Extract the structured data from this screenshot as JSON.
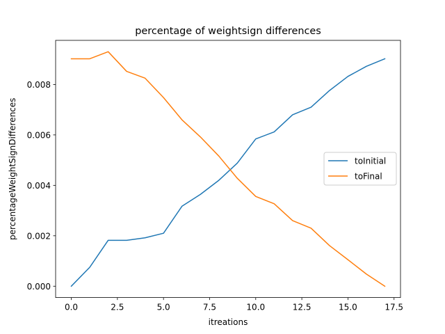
{
  "chart_data": {
    "type": "line",
    "title": "percentage of weightsign differences",
    "xlabel": "itreations",
    "ylabel": "percentageWeightSignDifferences",
    "xlim": [
      -0.85,
      17.85
    ],
    "ylim": [
      -0.00045,
      0.00975
    ],
    "xticks": [
      0.0,
      2.5,
      5.0,
      7.5,
      10.0,
      12.5,
      15.0,
      17.5
    ],
    "xtick_labels": [
      "0.0",
      "2.5",
      "5.0",
      "7.5",
      "10.0",
      "12.5",
      "15.0",
      "17.5"
    ],
    "yticks": [
      0.0,
      0.002,
      0.004,
      0.006,
      0.008
    ],
    "ytick_labels": [
      "0.000",
      "0.002",
      "0.004",
      "0.006",
      "0.008"
    ],
    "grid": false,
    "legend_position": "center-right",
    "x": [
      0,
      1,
      2,
      3,
      4,
      5,
      6,
      7,
      8,
      9,
      10,
      11,
      12,
      13,
      14,
      15,
      16,
      17
    ],
    "series": [
      {
        "name": "toInitial",
        "color": "#1f77b4",
        "values": [
          0.0,
          0.00075,
          0.00182,
          0.00182,
          0.00192,
          0.0021,
          0.00317,
          0.00364,
          0.0042,
          0.00488,
          0.00584,
          0.00612,
          0.0068,
          0.0071,
          0.00776,
          0.00832,
          0.00872,
          0.00902
        ]
      },
      {
        "name": "toFinal",
        "color": "#ff7f0e",
        "values": [
          0.00902,
          0.00902,
          0.0093,
          0.00852,
          0.00825,
          0.00748,
          0.0066,
          0.00592,
          0.00516,
          0.00428,
          0.00356,
          0.00327,
          0.0026,
          0.0023,
          0.00161,
          0.00105,
          0.00048,
          0.0
        ]
      }
    ]
  }
}
